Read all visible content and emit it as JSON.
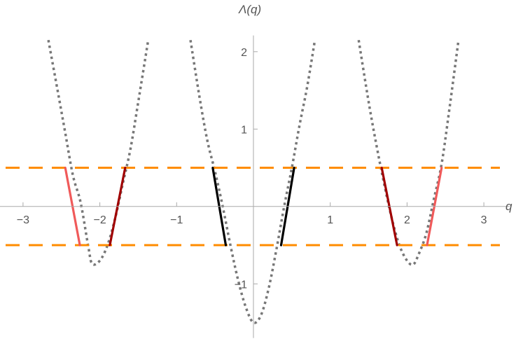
{
  "chart_data": {
    "type": "line",
    "xlabel": "q",
    "ylabel": "Λ(q)",
    "xlim": [
      -3.3,
      3.3
    ],
    "ylim": [
      -1.7,
      2.3
    ],
    "xticks": [
      -3,
      -2,
      -1,
      1,
      2,
      3
    ],
    "xtick_labels": [
      "−3",
      "−2",
      "−1",
      "1",
      "2",
      "3"
    ],
    "yticks": [
      -1,
      1,
      2
    ],
    "ytick_labels": [
      "−1",
      "1",
      "2"
    ],
    "grid": false,
    "colors": {
      "axis": "#aaaaaa",
      "curve": "#777777",
      "threshold": "#ff8c00",
      "center_segment": "#000000",
      "dark_red_segment": "#a00000",
      "light_red_segment": "#f05a5a"
    },
    "series": [
      {
        "style": "dotted",
        "color": "#777777",
        "points": [
          [
            -2.67,
            2.15
          ],
          [
            -2.55,
            1.5
          ],
          [
            -2.45,
            0.95
          ],
          [
            -2.35,
            0.4
          ],
          [
            -2.25,
            0.05
          ],
          [
            -2.15,
            -0.52
          ],
          [
            -2.1,
            -0.74
          ],
          [
            -2.0,
            -0.7
          ],
          [
            -1.9,
            -0.5
          ],
          [
            -1.8,
            -0.15
          ],
          [
            -1.7,
            0.3
          ],
          [
            -1.6,
            0.75
          ],
          [
            -1.5,
            1.35
          ],
          [
            -1.37,
            2.15
          ]
        ]
      },
      {
        "style": "dotted",
        "color": "#777777",
        "points": [
          [
            -0.82,
            2.15
          ],
          [
            -0.7,
            1.4
          ],
          [
            -0.6,
            0.85
          ],
          [
            -0.5,
            0.45
          ],
          [
            -0.4,
            0.0
          ],
          [
            -0.3,
            -0.5
          ],
          [
            -0.2,
            -0.95
          ],
          [
            -0.1,
            -1.3
          ],
          [
            0.0,
            -1.5
          ],
          [
            0.1,
            -1.4
          ],
          [
            0.2,
            -1.05
          ],
          [
            0.3,
            -0.55
          ],
          [
            0.4,
            0.0
          ],
          [
            0.5,
            0.5
          ],
          [
            0.6,
            1.05
          ],
          [
            0.7,
            1.55
          ],
          [
            0.8,
            2.15
          ]
        ]
      },
      {
        "style": "dotted",
        "color": "#777777",
        "points": [
          [
            1.37,
            2.15
          ],
          [
            1.5,
            1.35
          ],
          [
            1.6,
            0.8
          ],
          [
            1.7,
            0.3
          ],
          [
            1.8,
            -0.15
          ],
          [
            1.9,
            -0.5
          ],
          [
            2.0,
            -0.7
          ],
          [
            2.08,
            -0.75
          ],
          [
            2.15,
            -0.62
          ],
          [
            2.25,
            -0.35
          ],
          [
            2.35,
            0.1
          ],
          [
            2.45,
            0.55
          ],
          [
            2.55,
            1.25
          ],
          [
            2.67,
            2.15
          ]
        ]
      }
    ],
    "thresholds": [
      {
        "style": "dashed",
        "color": "#ff8c00",
        "y": 0.5
      },
      {
        "style": "dashed",
        "color": "#ff8c00",
        "y": -0.5
      }
    ],
    "segments": [
      {
        "color": "#f05a5a",
        "x": [
          -2.45,
          -2.26
        ],
        "y": [
          0.5,
          -0.5
        ]
      },
      {
        "color": "#a00000",
        "x": [
          -1.67,
          -1.87
        ],
        "y": [
          0.5,
          -0.5
        ]
      },
      {
        "color": "#000000",
        "x": [
          -0.53,
          -0.36
        ],
        "y": [
          0.5,
          -0.5
        ]
      },
      {
        "color": "#000000",
        "x": [
          0.53,
          0.36
        ],
        "y": [
          0.5,
          -0.5
        ]
      },
      {
        "color": "#a00000",
        "x": [
          1.67,
          1.87
        ],
        "y": [
          0.5,
          -0.5
        ]
      },
      {
        "color": "#f05a5a",
        "x": [
          2.45,
          2.26
        ],
        "y": [
          0.5,
          -0.5
        ]
      }
    ]
  }
}
